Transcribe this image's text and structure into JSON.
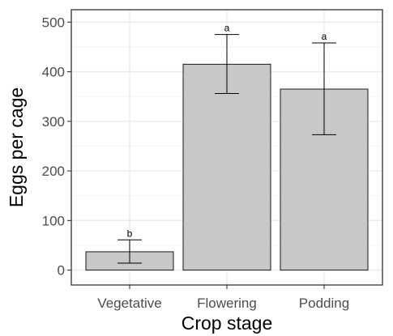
{
  "chart_data": {
    "type": "bar",
    "categories": [
      "Vegetative",
      "Flowering",
      "Podding"
    ],
    "values": [
      37,
      415,
      365
    ],
    "error_bars": [
      {
        "low": 14,
        "high": 61
      },
      {
        "low": 356,
        "high": 475
      },
      {
        "low": 273,
        "high": 458
      }
    ],
    "significance_letters": [
      "b",
      "a",
      "a"
    ],
    "xlabel": "Crop stage",
    "ylabel": "Eggs per cage",
    "ylim": [
      -30,
      525
    ],
    "yticks": [
      0,
      100,
      200,
      300,
      400,
      500
    ],
    "grid": true,
    "colors": {
      "bar_fill": "#c8c8c8",
      "bar_stroke": "#1a1a1a",
      "grid_major": "#ebebeb",
      "grid_minor": "#f5f5f5",
      "panel_border": "#333333"
    }
  }
}
